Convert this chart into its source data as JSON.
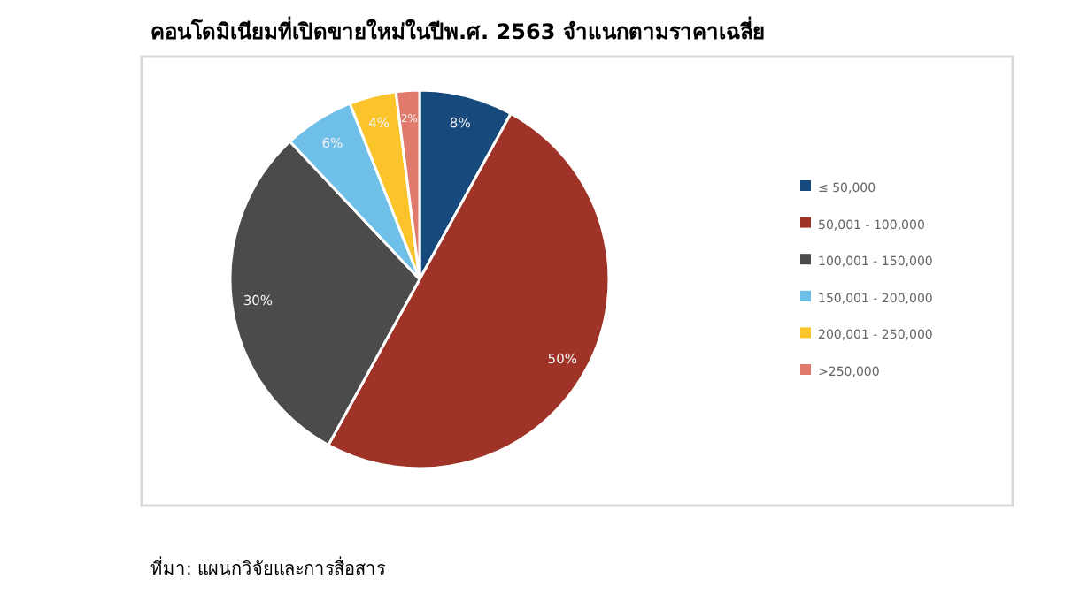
{
  "chart_data": {
    "type": "pie",
    "title": "คอนโดมิเนียมที่เปิดขายใหม่ในปีพ.ศ. 2563 จำแนกตามราคาเฉลี่ย",
    "categories": [
      "≤ 50,000",
      "50,001 - 100,000",
      "100,001 - 150,000",
      "150,001 - 200,000",
      "200,001 - 250,000",
      ">250,000"
    ],
    "values": [
      8,
      50,
      30,
      6,
      4,
      2
    ],
    "colors": [
      "#174a7c",
      "#a03327",
      "#4b4b4b",
      "#6fc0e8",
      "#fbc42a",
      "#e07a6d"
    ],
    "value_labels": [
      "8%",
      "50%",
      "30%",
      "6%",
      "4%",
      "2%"
    ],
    "legend": "right",
    "annotations": [
      "ที่มา: แผนกวิจัยและการสื่อสาร"
    ]
  }
}
